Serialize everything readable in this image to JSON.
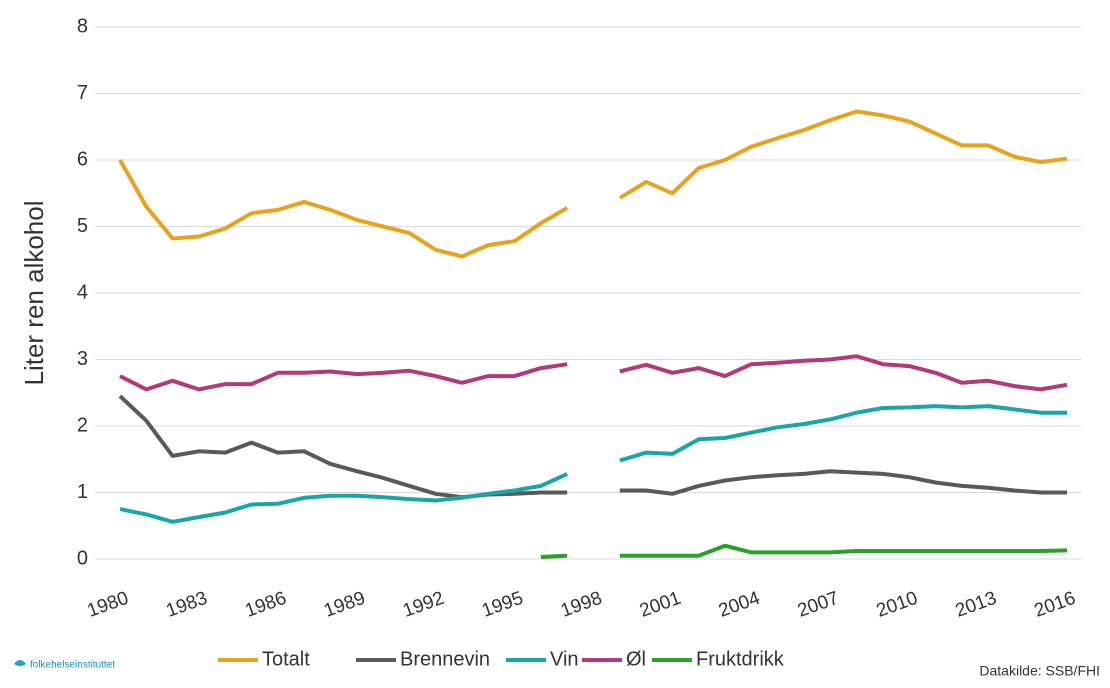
{
  "chart_data": {
    "type": "line",
    "y_label": "Liter ren alkohol",
    "x": [
      1980,
      1981,
      1982,
      1983,
      1984,
      1985,
      1986,
      1987,
      1988,
      1989,
      1990,
      1991,
      1992,
      1993,
      1994,
      1995,
      1996,
      1997,
      1998,
      1999,
      2000,
      2001,
      2002,
      2003,
      2004,
      2005,
      2006,
      2007,
      2008,
      2009,
      2010,
      2011,
      2012,
      2013,
      2014,
      2015,
      2016
    ],
    "xlim": [
      1980,
      2016
    ],
    "xticks": [
      1980,
      1983,
      1986,
      1989,
      1992,
      1995,
      1998,
      2001,
      2004,
      2007,
      2010,
      2013,
      2016
    ],
    "ylim": [
      0,
      8
    ],
    "yticks": [
      0,
      1,
      2,
      3,
      4,
      5,
      6,
      7,
      8
    ],
    "grid": true,
    "legend": "bottom",
    "series": [
      {
        "name": "Totalt",
        "color": "#e8a21e",
        "values": [
          6.0,
          5.3,
          4.82,
          4.85,
          4.97,
          5.2,
          5.25,
          5.37,
          5.25,
          5.1,
          5.0,
          4.9,
          4.65,
          4.55,
          4.72,
          4.78,
          5.05,
          5.28,
          null,
          5.43,
          5.67,
          5.5,
          5.88,
          6.0,
          6.2,
          6.33,
          6.45,
          6.6,
          6.73,
          6.67,
          6.58,
          6.4,
          6.22,
          6.22,
          6.05,
          5.97,
          6.02
        ]
      },
      {
        "name": "Brennevin",
        "color": "#595959",
        "values": [
          2.45,
          2.08,
          1.55,
          1.62,
          1.6,
          1.75,
          1.6,
          1.62,
          1.43,
          1.32,
          1.22,
          1.1,
          0.98,
          0.93,
          0.97,
          0.98,
          1.0,
          1.0,
          null,
          1.03,
          1.03,
          0.98,
          1.1,
          1.18,
          1.23,
          1.26,
          1.28,
          1.32,
          1.3,
          1.28,
          1.23,
          1.15,
          1.1,
          1.07,
          1.03,
          1.0,
          1.0
        ]
      },
      {
        "name": "Vin",
        "color": "#1aa6a6",
        "values": [
          0.75,
          0.67,
          0.56,
          0.63,
          0.7,
          0.82,
          0.83,
          0.92,
          0.95,
          0.95,
          0.93,
          0.9,
          0.88,
          0.92,
          0.98,
          1.03,
          1.1,
          1.28,
          null,
          1.48,
          1.6,
          1.58,
          1.8,
          1.82,
          1.9,
          1.98,
          2.03,
          2.1,
          2.2,
          2.27,
          2.28,
          2.3,
          2.28,
          2.3,
          2.25,
          2.2,
          2.2
        ]
      },
      {
        "name": "Øl",
        "color": "#b03a7a",
        "values": [
          2.75,
          2.55,
          2.68,
          2.55,
          2.63,
          2.63,
          2.8,
          2.8,
          2.82,
          2.78,
          2.8,
          2.83,
          2.75,
          2.65,
          2.75,
          2.75,
          2.87,
          2.93,
          null,
          2.82,
          2.92,
          2.8,
          2.87,
          2.75,
          2.93,
          2.95,
          2.98,
          3.0,
          3.05,
          2.93,
          2.9,
          2.8,
          2.65,
          2.68,
          2.6,
          2.55,
          2.62
        ]
      },
      {
        "name": "Fruktdrikk",
        "color": "#2aa02a",
        "values": [
          null,
          null,
          null,
          null,
          null,
          null,
          null,
          null,
          null,
          null,
          null,
          null,
          null,
          null,
          null,
          null,
          0.03,
          0.05,
          null,
          0.05,
          0.05,
          0.05,
          0.05,
          0.2,
          0.1,
          0.1,
          0.1,
          0.1,
          0.12,
          0.12,
          0.12,
          0.12,
          0.12,
          0.12,
          0.12,
          0.12,
          0.13
        ]
      }
    ]
  },
  "footer": {
    "logo": "folkehelseinstituttet",
    "source": "Datakilde: SSB/FHI"
  }
}
